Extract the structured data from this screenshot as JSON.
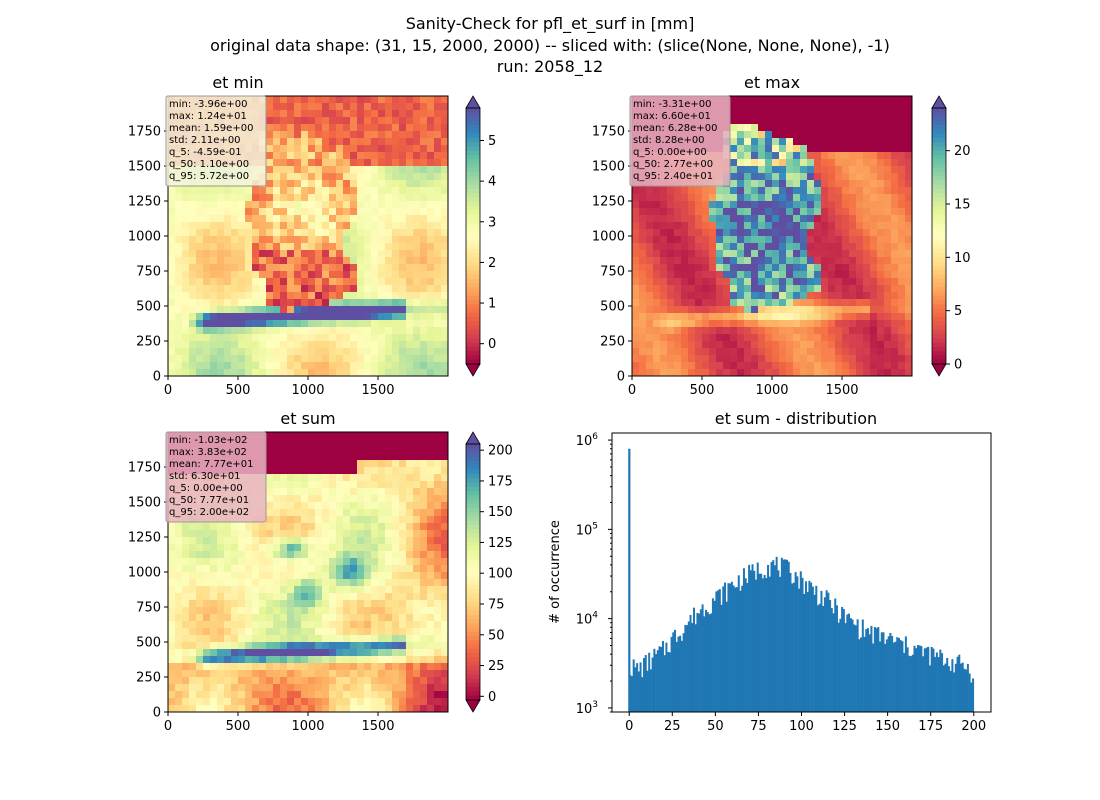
{
  "figure": {
    "suptitle_lines": [
      "Sanity-Check for pfl_et_surf in [mm]",
      "original data shape: (31, 15, 2000, 2000) -- sliced with: (slice(None, None, None), -1)",
      "run: 2058_12"
    ]
  },
  "chart_data": [
    {
      "type": "heatmap",
      "title": "et min",
      "colormap": "Spectral",
      "xlim": [
        0,
        2000
      ],
      "ylim": [
        0,
        2000
      ],
      "xticks": [
        0,
        500,
        1000,
        1500
      ],
      "yticks": [
        0,
        250,
        500,
        750,
        1000,
        1250,
        1500,
        1750
      ],
      "colorbar": {
        "range": [
          -0.5,
          5.8
        ],
        "ticks": [
          0,
          1,
          2,
          3,
          4,
          5
        ],
        "extend": "both"
      },
      "stats": [
        "min: -3.96e+00",
        "max: 1.24e+01",
        "mean: 1.59e+00",
        "std: 2.11e+00",
        "q_5: -4.59e-01",
        "q_50: 1.10e+00",
        "q_95: 5.72e+00"
      ],
      "stats_box_color": "#f5f5dc"
    },
    {
      "type": "heatmap",
      "title": "et max",
      "colormap": "Spectral",
      "xlim": [
        0,
        2000
      ],
      "ylim": [
        0,
        2000
      ],
      "xticks": [
        0,
        500,
        1000,
        1500
      ],
      "yticks": [
        0,
        250,
        500,
        750,
        1000,
        1250,
        1500,
        1750
      ],
      "colorbar": {
        "range": [
          0,
          24
        ],
        "ticks": [
          0,
          5,
          10,
          15,
          20
        ],
        "extend": "both"
      },
      "stats": [
        "min: -3.31e+00",
        "max: 6.60e+01",
        "mean: 6.28e+00",
        "std: 8.28e+00",
        "q_5: 0.00e+00",
        "q_50: 2.77e+00",
        "q_95: 2.40e+01"
      ],
      "stats_box_color": "#e8b3c0"
    },
    {
      "type": "heatmap",
      "title": "et sum",
      "colormap": "Spectral",
      "xlim": [
        0,
        2000
      ],
      "ylim": [
        0,
        2000
      ],
      "xticks": [
        0,
        500,
        1000,
        1500
      ],
      "yticks": [
        0,
        250,
        500,
        750,
        1000,
        1250,
        1500,
        1750
      ],
      "colorbar": {
        "range": [
          -3,
          205
        ],
        "ticks": [
          0,
          25,
          50,
          75,
          100,
          125,
          150,
          175,
          200
        ],
        "extend": "both"
      },
      "stats": [
        "min: -1.03e+02",
        "max: 3.83e+02",
        "mean: 7.77e+01",
        "std: 6.30e+01",
        "q_5: 0.00e+00",
        "q_50: 7.77e+01",
        "q_95: 2.00e+02"
      ],
      "stats_box_color": "#e8b3c0"
    },
    {
      "type": "bar",
      "title": "et sum - distribution",
      "xlabel": "",
      "ylabel": "# of occurrence",
      "yscale": "log",
      "xlim": [
        -10,
        210
      ],
      "ylim": [
        900,
        1200000
      ],
      "xticks": [
        0,
        25,
        50,
        75,
        100,
        125,
        150,
        175,
        200
      ],
      "yticks": [
        1000,
        10000,
        100000,
        1000000
      ],
      "ytick_labels": [
        "10^3",
        "10^4",
        "10^5",
        "10^6"
      ],
      "bar_color": "#1f77b4",
      "spike": {
        "x": 0,
        "y": 800000
      },
      "bins_x": [
        0,
        5,
        10,
        15,
        20,
        25,
        30,
        35,
        40,
        45,
        50,
        55,
        60,
        65,
        70,
        75,
        80,
        85,
        90,
        95,
        100,
        105,
        110,
        115,
        120,
        125,
        130,
        135,
        140,
        145,
        150,
        155,
        160,
        165,
        170,
        175,
        180,
        185,
        190,
        195,
        200
      ],
      "bins_y": [
        3000,
        2700,
        3200,
        3800,
        4500,
        6000,
        7500,
        9500,
        12000,
        14500,
        17000,
        20000,
        24000,
        28000,
        32000,
        36000,
        40000,
        40000,
        37000,
        33000,
        27000,
        23000,
        19000,
        16000,
        13000,
        10500,
        9000,
        7800,
        7000,
        6500,
        6000,
        5500,
        5000,
        4700,
        4300,
        4000,
        3700,
        3400,
        3200,
        3000,
        2500
      ]
    }
  ]
}
